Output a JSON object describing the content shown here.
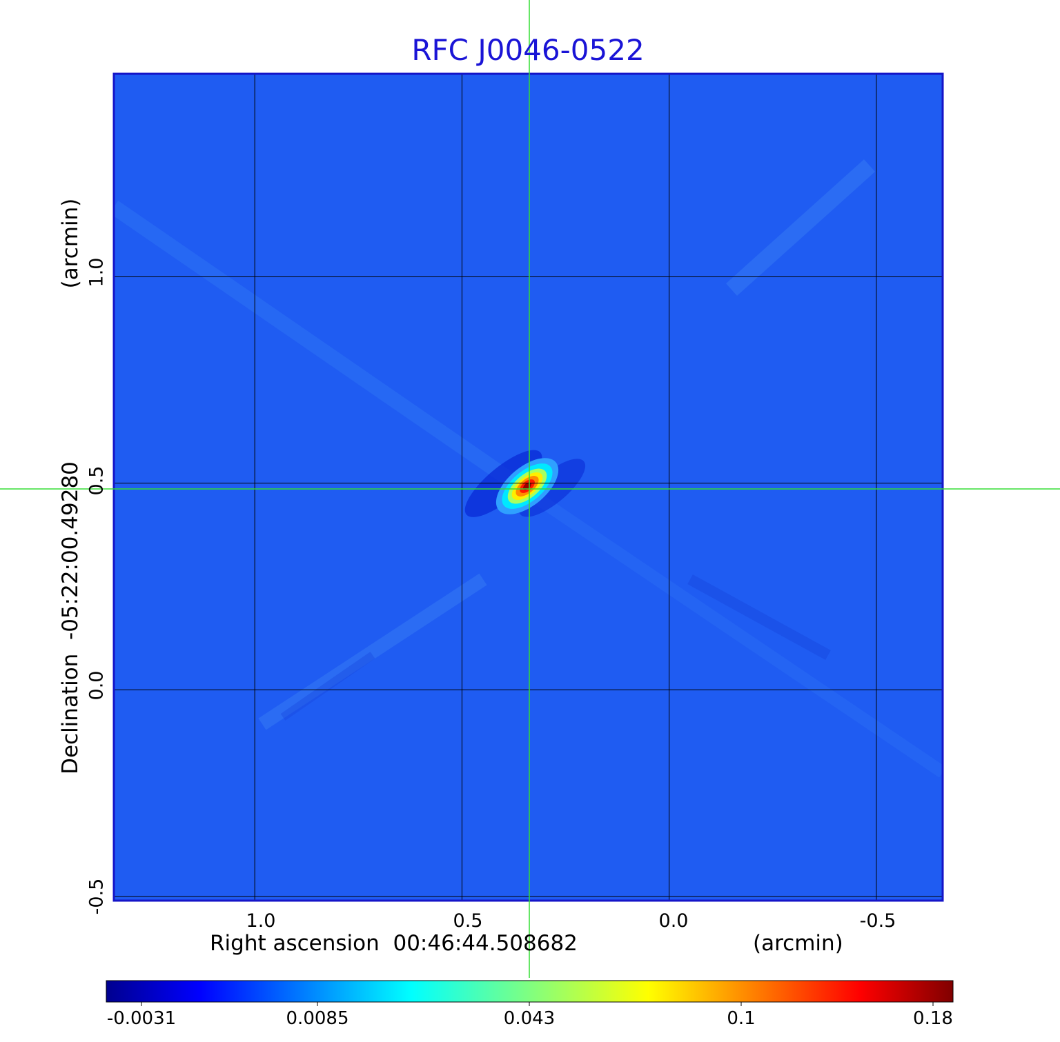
{
  "chart_data": {
    "type": "heatmap",
    "title": "RFC J0046-0522",
    "xlabel": "Right ascension  00:46:44.508682",
    "x_unit": "(arcmin)",
    "ylabel": "Declination  -05:22:00.49280",
    "y_unit": "(arcmin)",
    "x_ticks": [
      "1.0",
      "0.5",
      "0.0",
      "-0.5"
    ],
    "y_ticks": [
      "-0.5",
      "0.0",
      "0.5",
      "1.0"
    ],
    "xlim": [
      1.34,
      -0.66
    ],
    "ylim": [
      -0.51,
      1.49
    ],
    "grid": true,
    "crosshair": {
      "x": 0.34,
      "y": 0.49,
      "color": "#33dd33"
    },
    "colormap": "jet",
    "colorbar": {
      "ticks": [
        "-0.0031",
        "0.0085",
        "0.043",
        "0.1",
        "0.18"
      ],
      "min": -0.0031,
      "max": 0.18
    },
    "source": {
      "x": 0.34,
      "y": 0.5,
      "peak": 0.18,
      "position_angle_deg": -40
    }
  }
}
